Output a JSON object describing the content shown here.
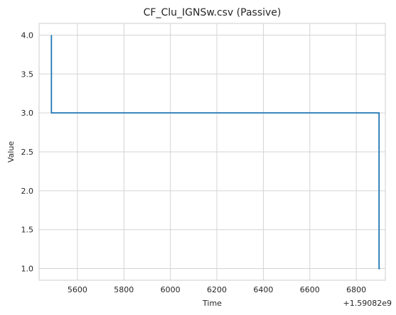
{
  "chart_data": {
    "type": "line",
    "title": "CF_Clu_IGNSw.csv (Passive)",
    "xlabel": "Time",
    "ylabel": "Value",
    "x_offset_label": "+1.59082e9",
    "xlim": [
      5435,
      6925
    ],
    "ylim": [
      0.85,
      4.15
    ],
    "x_ticks": [
      5600,
      5800,
      6000,
      6200,
      6400,
      6600,
      6800
    ],
    "y_ticks": [
      1.0,
      1.5,
      2.0,
      2.5,
      3.0,
      3.5,
      4.0
    ],
    "y_tick_labels": [
      "1.0",
      "1.5",
      "2.0",
      "2.5",
      "3.0",
      "3.5",
      "4.0"
    ],
    "grid": true,
    "series": [
      {
        "color": "#1f77b4",
        "x": [
          5488,
          5488,
          5490,
          5490,
          6898,
          6898,
          6902
        ],
        "y": [
          4.0,
          3.0,
          3.0,
          3.0,
          3.0,
          1.0,
          1.0
        ]
      }
    ]
  }
}
